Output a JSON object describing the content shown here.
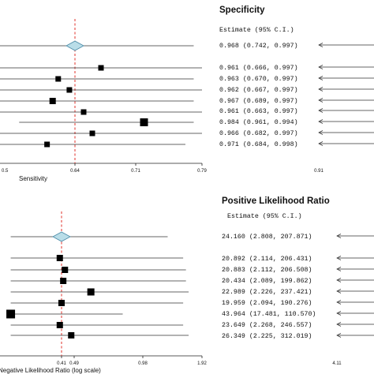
{
  "chart_data": [
    {
      "type": "forest",
      "panel": "top-left",
      "xlabel": "Sensitivity",
      "ticks": [
        "0.5",
        "0.64",
        "0.71",
        "0.79"
      ],
      "tick_values": [
        0.5,
        0.64,
        0.71,
        0.79
      ],
      "reference_line": 0.64,
      "summary": {
        "estimate": 0.64,
        "lower": 0.5,
        "upper": 0.78
      },
      "studies": [
        {
          "estimate": 0.67,
          "lower": 0.5,
          "upper": 0.79
        },
        {
          "estimate": 0.61,
          "lower": 0.5,
          "upper": 0.78
        },
        {
          "estimate": 0.63,
          "lower": 0.5,
          "upper": 0.79
        },
        {
          "estimate": 0.6,
          "lower": 0.5,
          "upper": 0.78
        },
        {
          "estimate": 0.65,
          "lower": 0.5,
          "upper": 0.79
        },
        {
          "estimate": 0.72,
          "lower": 0.54,
          "upper": 0.78
        },
        {
          "estimate": 0.66,
          "lower": 0.5,
          "upper": 0.79
        },
        {
          "estimate": 0.59,
          "lower": 0.5,
          "upper": 0.77
        }
      ],
      "marker_sizes": [
        7,
        7,
        7,
        8,
        7,
        10,
        7,
        7
      ]
    },
    {
      "type": "forest",
      "panel": "top-right",
      "title": "Specificity",
      "table_header": "Estimate (95% C.I.)",
      "summary_text": "0.968 (0.742, 0.997)",
      "rows": [
        "0.961 (0.666, 0.997)",
        "0.963 (0.670, 0.997)",
        "0.962 (0.667, 0.997)",
        "0.967 (0.689, 0.997)",
        "0.961 (0.663, 0.997)",
        "0.984 (0.961, 0.994)",
        "0.966 (0.682, 0.997)",
        "0.971 (0.684, 0.998)"
      ],
      "tick_label": "0.91"
    },
    {
      "type": "forest",
      "panel": "bottom-left",
      "xlabel": "Negative Likelihood Ratio (log scale)",
      "ticks": [
        "0.41",
        "0.49",
        "0.98",
        "1.92"
      ],
      "tick_values": [
        0.41,
        0.49,
        0.98,
        1.92
      ],
      "reference_line": 0.41,
      "summary": {
        "estimate": 0.41,
        "lower": 0.2,
        "upper": 1.3
      },
      "studies": [
        {
          "estimate": 0.4,
          "lower": 0.2,
          "upper": 1.55
        },
        {
          "estimate": 0.43,
          "lower": 0.2,
          "upper": 1.6
        },
        {
          "estimate": 0.42,
          "lower": 0.2,
          "upper": 1.6
        },
        {
          "estimate": 0.58,
          "lower": 0.2,
          "upper": 1.65
        },
        {
          "estimate": 0.41,
          "lower": 0.2,
          "upper": 1.55
        },
        {
          "estimate": 0.2,
          "lower": 0.2,
          "upper": 0.8
        },
        {
          "estimate": 0.4,
          "lower": 0.2,
          "upper": 1.55
        },
        {
          "estimate": 0.47,
          "lower": 0.2,
          "upper": 1.65
        }
      ],
      "marker_sizes": [
        8,
        8,
        8,
        9,
        8,
        11,
        8,
        8
      ]
    },
    {
      "type": "forest",
      "panel": "bottom-right",
      "title": "Positive Likelihood Ratio",
      "table_header": "Estimate (95% C.I.)",
      "summary_text": "24.160 (2.808, 207.871)",
      "rows": [
        "20.892 (2.114, 206.431)",
        "20.883 (2.112, 206.508)",
        "20.434 (2.089, 199.862)",
        "22.989 (2.226, 237.421)",
        "19.959 (2.094, 190.276)",
        "43.964 (17.481, 110.570)",
        "23.649 (2.268, 246.557)",
        "26.349 (2.225, 312.019)"
      ],
      "tick_label": "4.11"
    }
  ]
}
